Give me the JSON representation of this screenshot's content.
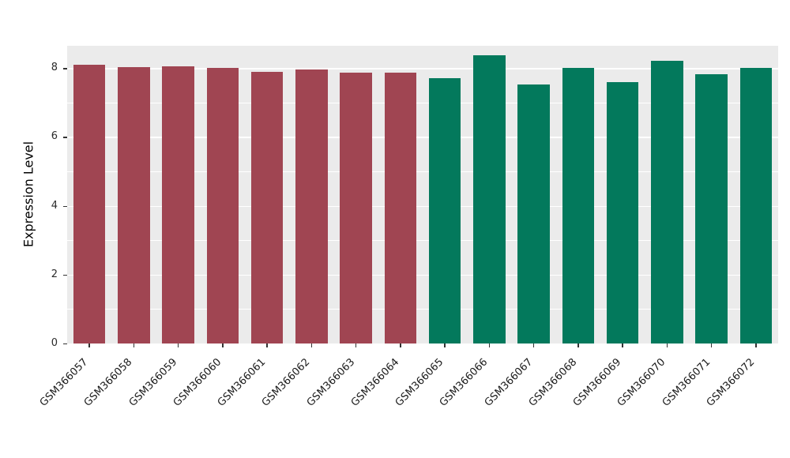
{
  "chart_data": {
    "type": "bar",
    "title": "",
    "xlabel": "",
    "ylabel": "Expression Level",
    "ylim": [
      0,
      8.65
    ],
    "yticks_major": [
      0,
      2,
      4,
      6,
      8
    ],
    "yticks_minor": [
      1,
      3,
      5,
      7
    ],
    "grid": true,
    "legend": "none",
    "panel_bg": "#EBEBEB",
    "grid_color": "#FFFFFF",
    "categories": [
      "GSM366057",
      "GSM366058",
      "GSM366059",
      "GSM366060",
      "GSM366061",
      "GSM366062",
      "GSM366063",
      "GSM366064",
      "GSM366065",
      "GSM366066",
      "GSM366067",
      "GSM366068",
      "GSM366069",
      "GSM366070",
      "GSM366071",
      "GSM366072"
    ],
    "values": [
      8.1,
      8.03,
      8.05,
      8.01,
      7.9,
      7.96,
      7.88,
      7.86,
      7.7,
      8.37,
      7.52,
      8.0,
      7.59,
      8.22,
      7.83,
      8.01
    ],
    "bar_colors": [
      "#A04552",
      "#A04552",
      "#A04552",
      "#A04552",
      "#A04552",
      "#A04552",
      "#A04552",
      "#A04552",
      "#03795C",
      "#03795C",
      "#03795C",
      "#03795C",
      "#03795C",
      "#03795C",
      "#03795C",
      "#03795C"
    ],
    "group_colors": {
      "group1": "#A04552",
      "group2": "#03795C"
    }
  }
}
